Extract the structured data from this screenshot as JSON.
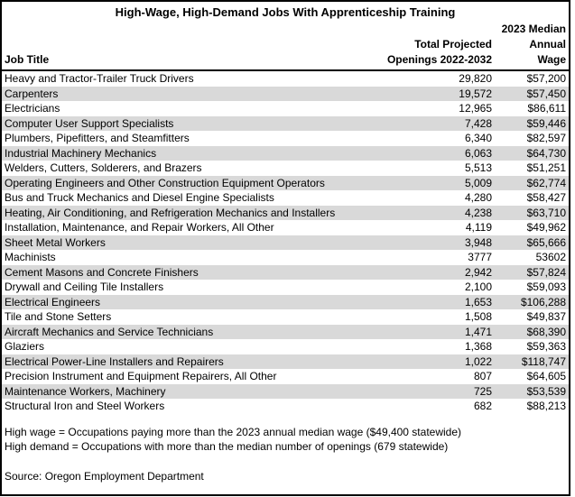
{
  "chart_data": {
    "type": "table",
    "title": "High-Wage, High-Demand Jobs With Apprenticeship Training",
    "columns": {
      "job": "Job Title",
      "openings_line1": "Total Projected",
      "openings_line2": "Openings 2022-2032",
      "wage_line1": "2023 Median",
      "wage_line2": "Annual",
      "wage_line3": "Wage"
    },
    "rows": [
      {
        "job": "Heavy and Tractor-Trailer Truck Drivers",
        "openings": "29,820",
        "wage": "$57,200"
      },
      {
        "job": "Carpenters",
        "openings": "19,572",
        "wage": "$57,450"
      },
      {
        "job": "Electricians",
        "openings": "12,965",
        "wage": "$86,611"
      },
      {
        "job": "Computer User Support Specialists",
        "openings": "7,428",
        "wage": "$59,446"
      },
      {
        "job": "Plumbers, Pipefitters, and Steamfitters",
        "openings": "6,340",
        "wage": "$82,597"
      },
      {
        "job": "Industrial Machinery Mechanics",
        "openings": "6,063",
        "wage": "$64,730"
      },
      {
        "job": "Welders, Cutters, Solderers, and Brazers",
        "openings": "5,513",
        "wage": "$51,251"
      },
      {
        "job": "Operating Engineers and Other Construction Equipment Operators",
        "openings": "5,009",
        "wage": "$62,774"
      },
      {
        "job": "Bus and Truck Mechanics and Diesel Engine Specialists",
        "openings": "4,280",
        "wage": "$58,427"
      },
      {
        "job": "Heating, Air Conditioning, and Refrigeration Mechanics and Installers",
        "openings": "4,238",
        "wage": "$63,710"
      },
      {
        "job": "Installation, Maintenance, and Repair Workers, All Other",
        "openings": "4,119",
        "wage": "$49,962"
      },
      {
        "job": "Sheet Metal Workers",
        "openings": "3,948",
        "wage": "$65,666"
      },
      {
        "job": "Machinists",
        "openings": "3777",
        "wage": "53602"
      },
      {
        "job": "Cement Masons and Concrete Finishers",
        "openings": "2,942",
        "wage": "$57,824"
      },
      {
        "job": "Drywall and Ceiling Tile Installers",
        "openings": "2,100",
        "wage": "$59,093"
      },
      {
        "job": "Electrical Engineers",
        "openings": "1,653",
        "wage": "$106,288"
      },
      {
        "job": "Tile and Stone Setters",
        "openings": "1,508",
        "wage": "$49,837"
      },
      {
        "job": "Aircraft Mechanics and Service Technicians",
        "openings": "1,471",
        "wage": "$68,390"
      },
      {
        "job": "Glaziers",
        "openings": "1,368",
        "wage": "$59,363"
      },
      {
        "job": "Electrical Power-Line Installers and Repairers",
        "openings": "1,022",
        "wage": "$118,747"
      },
      {
        "job": "Precision Instrument and Equipment Repairers, All Other",
        "openings": "807",
        "wage": "$64,605"
      },
      {
        "job": "Maintenance Workers, Machinery",
        "openings": "725",
        "wage": "$53,539"
      },
      {
        "job": "Structural Iron and Steel Workers",
        "openings": "682",
        "wage": "$88,213"
      }
    ],
    "notes": [
      "High wage = Occupations paying more than the 2023 annual median wage ($49,400 statewide)",
      "High demand = Occupations with more than the median number of openings (679 statewide)"
    ],
    "source": "Source: Oregon Employment Department",
    "layout": {
      "stripe_rows": "even",
      "legend": "none",
      "grid": false
    }
  },
  "colors": {
    "background": "#FFFFFF",
    "text": "#000000",
    "border": "#000000",
    "row_stripe": "#D9D9D9"
  }
}
